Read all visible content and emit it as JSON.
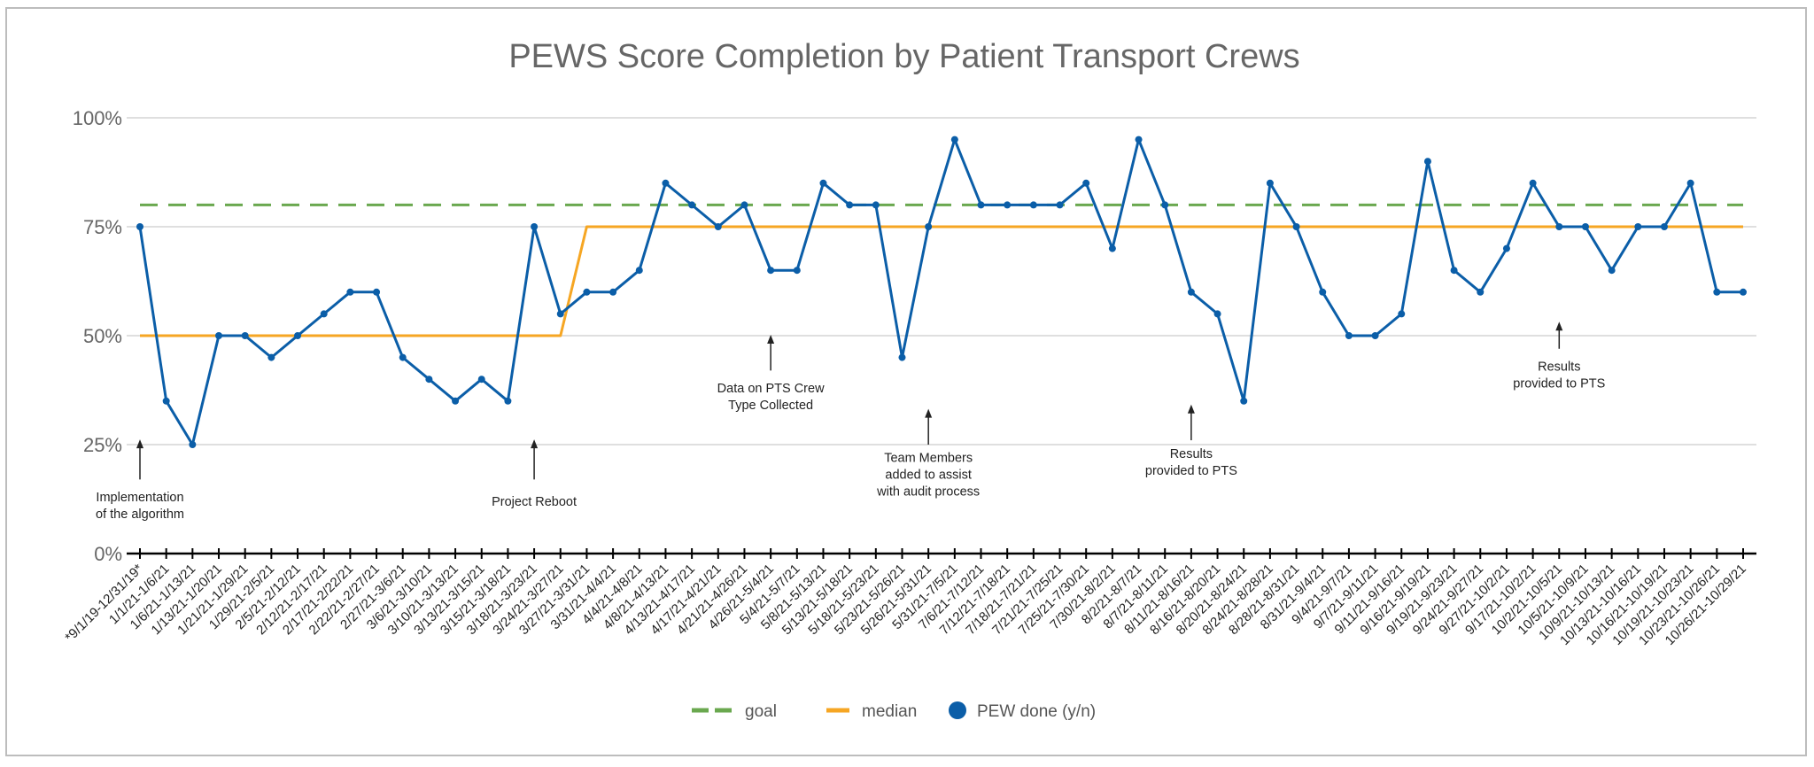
{
  "chart_data": {
    "type": "line",
    "title": "PEWS Score Completion by Patient Transport Crews",
    "xlabel": "",
    "ylabel": "",
    "ylim": [
      0,
      100
    ],
    "yticks": [
      "0%",
      "25%",
      "50%",
      "75%",
      "100%"
    ],
    "grid": true,
    "legend_position": "bottom",
    "categories": [
      "*9/1/19-12/31/19*",
      "1/1/21-1/6/21",
      "1/6/21-1/13/21",
      "1/13/21-1/20/21",
      "1/21/21-1/29/21",
      "1/29/21-2/5/21",
      "2/5/21-2/12/21",
      "2/12/21-2/17/21",
      "2/17/21-2/22/21",
      "2/22/21-2/27/21",
      "2/27/21-3/6/21",
      "3/6/21-3/10/21",
      "3/10/21-3/13/21",
      "3/13/21-3/15/21",
      "3/15/21-3/18/21",
      "3/18/21-3/23/21",
      "3/24/21-3/27/21",
      "3/27/21-3/31/21",
      "3/31/21-4/4/21",
      "4/4/21-4/8/21",
      "4/8/21-4/13/21",
      "4/13/21-4/17/21",
      "4/17/21-4/21/21",
      "4/21/21-4/26/21",
      "4/26/21-5/4/21",
      "5/4/21-5/7/21",
      "5/8/21-5/13/21",
      "5/13/21-5/18/21",
      "5/18/21-5/23/21",
      "5/23/21-5/26/21",
      "5/26/21-5/31/21",
      "5/31/21-7/5/21",
      "7/6/21-7/12/21",
      "7/12/21-7/18/21",
      "7/18/21-7/21/21",
      "7/21/21-7/25/21",
      "7/25/21-7/30/21",
      "7/30/21-8/2/21",
      "8/2/21-8/7/21",
      "8/7/21-8/11/21",
      "8/11/21-8/16/21",
      "8/16/21-8/20/21",
      "8/20/21-8/24/21",
      "8/24/21-8/28/21",
      "8/28/21-8/31/21",
      "8/31/21-9/4/21",
      "9/4/21-9/7/21",
      "9/7/21-9/11/21",
      "9/11/21-9/16/21",
      "9/16/21-9/19/21",
      "9/19/21-9/23/21",
      "9/24/21-9/27/21",
      "9/27/21-10/2/21",
      "9/17/21-10/2/21",
      "10/2/21-10/5/21",
      "10/5/21-10/9/21",
      "10/9/21-10/13/21",
      "10/13/21-10/16/21",
      "10/16/21-10/19/21",
      "10/19/21-10/23/21",
      "10/23/21-10/26/21",
      "10/26/21-10/29/21"
    ],
    "series": [
      {
        "name": "goal",
        "color": "#6aa84f",
        "dashed": true,
        "values": [
          80,
          80,
          80,
          80,
          80,
          80,
          80,
          80,
          80,
          80,
          80,
          80,
          80,
          80,
          80,
          80,
          80,
          80,
          80,
          80,
          80,
          80,
          80,
          80,
          80,
          80,
          80,
          80,
          80,
          80,
          80,
          80,
          80,
          80,
          80,
          80,
          80,
          80,
          80,
          80,
          80,
          80,
          80,
          80,
          80,
          80,
          80,
          80,
          80,
          80,
          80,
          80,
          80,
          80,
          80,
          80,
          80,
          80,
          80,
          80,
          80,
          80
        ]
      },
      {
        "name": "median",
        "color": "#f6a623",
        "values": [
          50,
          50,
          50,
          50,
          50,
          50,
          50,
          50,
          50,
          50,
          50,
          50,
          50,
          50,
          50,
          50,
          50,
          75,
          75,
          75,
          75,
          75,
          75,
          75,
          75,
          75,
          75,
          75,
          75,
          75,
          75,
          75,
          75,
          75,
          75,
          75,
          75,
          75,
          75,
          75,
          75,
          75,
          75,
          75,
          75,
          75,
          75,
          75,
          75,
          75,
          75,
          75,
          75,
          75,
          75,
          75,
          75,
          75,
          75,
          75,
          75,
          75
        ]
      },
      {
        "name": "PEW done (y/n)",
        "color": "#0b5ea8",
        "markers": true,
        "values": [
          75,
          35,
          25,
          50,
          50,
          45,
          50,
          55,
          60,
          60,
          45,
          40,
          35,
          40,
          35,
          75,
          55,
          60,
          60,
          65,
          85,
          80,
          75,
          80,
          65,
          65,
          85,
          80,
          80,
          45,
          75,
          95,
          80,
          80,
          80,
          80,
          85,
          70,
          95,
          80,
          60,
          55,
          35,
          85,
          75,
          60,
          50,
          50,
          55,
          90,
          65,
          60,
          70,
          85,
          75,
          75,
          65,
          75,
          75,
          85,
          60,
          60
        ]
      }
    ],
    "annotations": [
      {
        "lines": [
          "Implementation",
          "of the algorithm"
        ],
        "index": 0,
        "arrow_from": 17,
        "arrow_to": 26,
        "text_y": 12
      },
      {
        "lines": [
          "Project Reboot"
        ],
        "index": 15,
        "arrow_from": 17,
        "arrow_to": 26,
        "text_y": 11
      },
      {
        "lines": [
          "Data on PTS Crew",
          "Type Collected"
        ],
        "index": 24,
        "arrow_from": 42,
        "arrow_to": 50,
        "text_y": 37
      },
      {
        "lines": [
          "Team Members",
          "added to assist",
          "with audit process"
        ],
        "index": 30,
        "arrow_from": 25,
        "arrow_to": 33,
        "text_y": 21
      },
      {
        "lines": [
          "Results",
          "provided to PTS"
        ],
        "index": 40,
        "arrow_from": 26,
        "arrow_to": 34,
        "text_y": 22
      },
      {
        "lines": [
          "Results",
          "provided to PTS"
        ],
        "index": 54,
        "arrow_from": 47,
        "arrow_to": 53,
        "text_y": 42
      }
    ]
  }
}
